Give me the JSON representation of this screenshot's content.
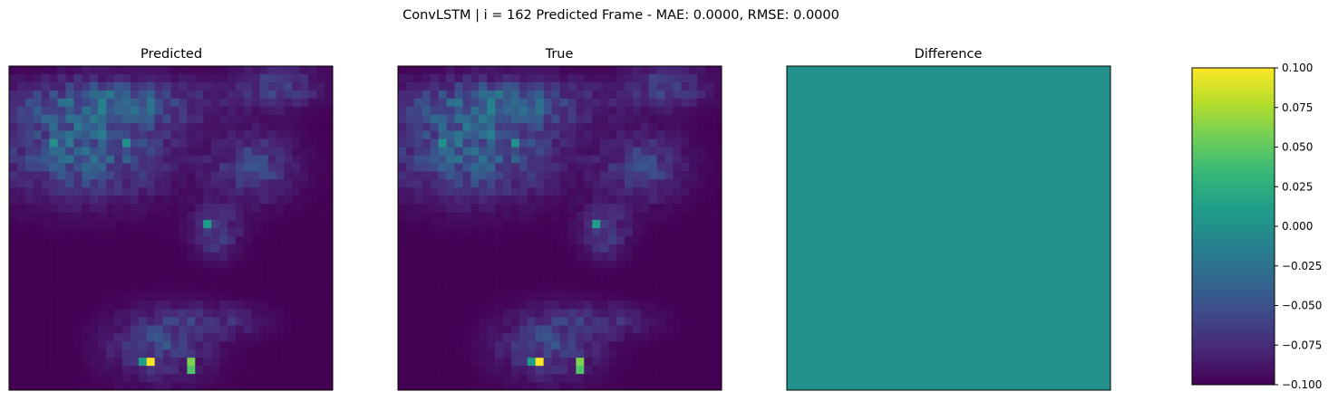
{
  "figure": {
    "suptitle": "ConvLSTM | i = 162 Predicted Frame - MAE: 0.0000, RMSE: 0.0000"
  },
  "chart_data": [
    {
      "type": "heatmap",
      "title": "Predicted",
      "colormap": "viridis",
      "grid_size": [
        40,
        40
      ],
      "value_range": [
        0,
        1
      ],
      "axes_visible": false,
      "bright_cells": [
        {
          "row": 36,
          "col": 17,
          "value": 1.0
        },
        {
          "row": 36,
          "col": 22,
          "value": 0.8
        },
        {
          "row": 37,
          "col": 22,
          "value": 0.72
        },
        {
          "row": 36,
          "col": 16,
          "value": 0.55
        },
        {
          "row": 19,
          "col": 24,
          "value": 0.55
        },
        {
          "row": 9,
          "col": 5,
          "value": 0.5
        },
        {
          "row": 9,
          "col": 14,
          "value": 0.5
        }
      ]
    },
    {
      "type": "heatmap",
      "title": "True",
      "colormap": "viridis",
      "grid_size": [
        40,
        40
      ],
      "value_range": [
        0,
        1
      ],
      "axes_visible": false,
      "bright_cells": [
        {
          "row": 36,
          "col": 17,
          "value": 1.0
        },
        {
          "row": 36,
          "col": 22,
          "value": 0.8
        },
        {
          "row": 37,
          "col": 22,
          "value": 0.72
        },
        {
          "row": 36,
          "col": 16,
          "value": 0.55
        },
        {
          "row": 19,
          "col": 24,
          "value": 0.55
        },
        {
          "row": 9,
          "col": 5,
          "value": 0.5
        },
        {
          "row": 9,
          "col": 14,
          "value": 0.5
        }
      ]
    },
    {
      "type": "heatmap",
      "title": "Difference",
      "colormap": "viridis",
      "grid_size": [
        40,
        40
      ],
      "uniform_value": 0.0,
      "value_range": [
        -0.1,
        0.1
      ],
      "axes_visible": false,
      "colorbar": {
        "range": [
          -0.1,
          0.1
        ],
        "ticks": [
          0.1,
          0.075,
          0.05,
          0.025,
          0.0,
          -0.025,
          -0.05,
          -0.075,
          -0.1
        ],
        "tick_labels": [
          "0.100",
          "0.075",
          "0.050",
          "0.025",
          "0.000",
          "−0.025",
          "−0.050",
          "−0.075",
          "−0.100"
        ]
      }
    }
  ],
  "colors": {
    "viridis_stops": [
      "#440154",
      "#482878",
      "#3e4989",
      "#31688e",
      "#26828e",
      "#1f9e89",
      "#35b779",
      "#6ece58",
      "#b5de2b",
      "#fde725"
    ],
    "difference_fill": "#21918c"
  }
}
